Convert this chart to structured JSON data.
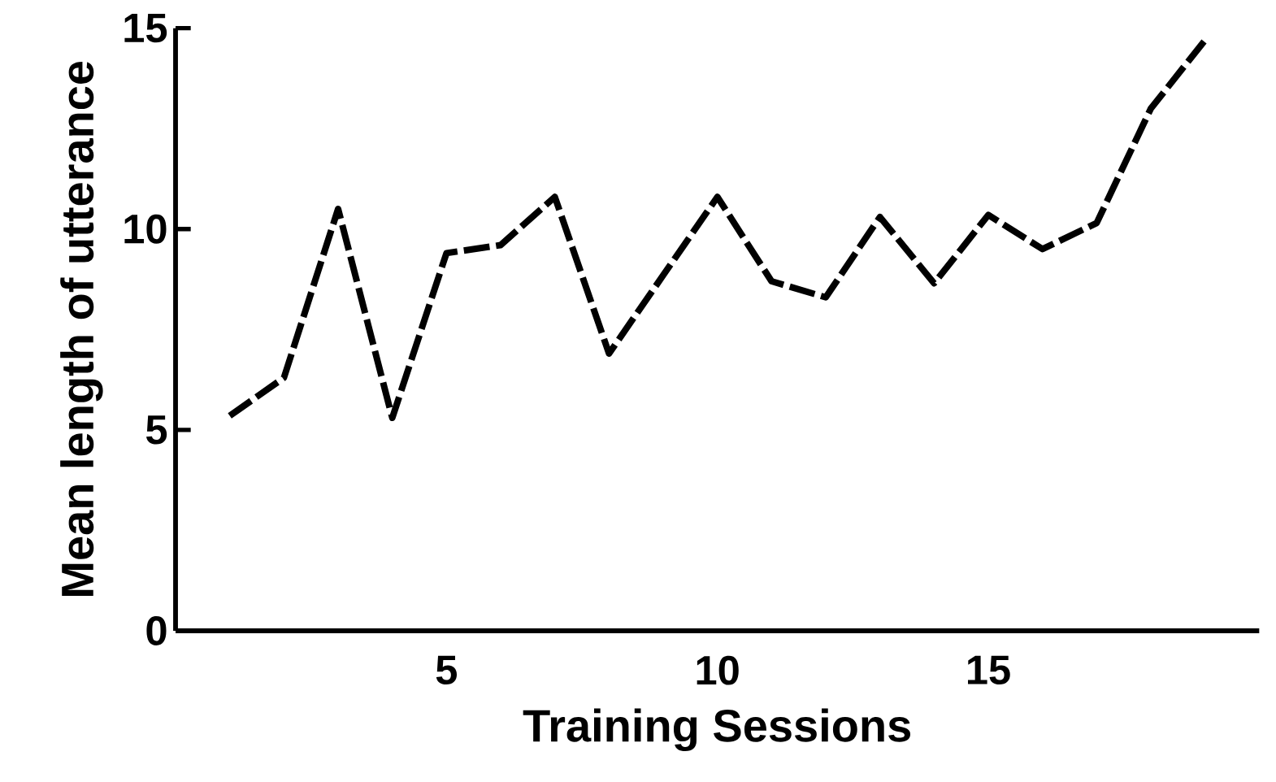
{
  "chart_data": {
    "type": "line",
    "xlabel": "Training Sessions",
    "ylabel": "Mean length of utterance",
    "x": [
      1,
      2,
      3,
      4,
      5,
      6,
      7,
      8,
      9,
      10,
      11,
      12,
      13,
      14,
      15,
      16,
      17,
      18,
      19
    ],
    "values": [
      5.35,
      6.3,
      10.5,
      5.3,
      9.4,
      9.6,
      10.8,
      6.9,
      8.85,
      10.8,
      8.7,
      8.3,
      10.3,
      8.65,
      10.35,
      9.5,
      10.15,
      13.0,
      14.7
    ],
    "color": "#000000",
    "line_style": "dashed",
    "xlim": [
      0,
      20
    ],
    "ylim": [
      0,
      15
    ],
    "xticks": [
      5,
      10,
      15
    ],
    "yticks": [
      0,
      5,
      10,
      15
    ]
  }
}
